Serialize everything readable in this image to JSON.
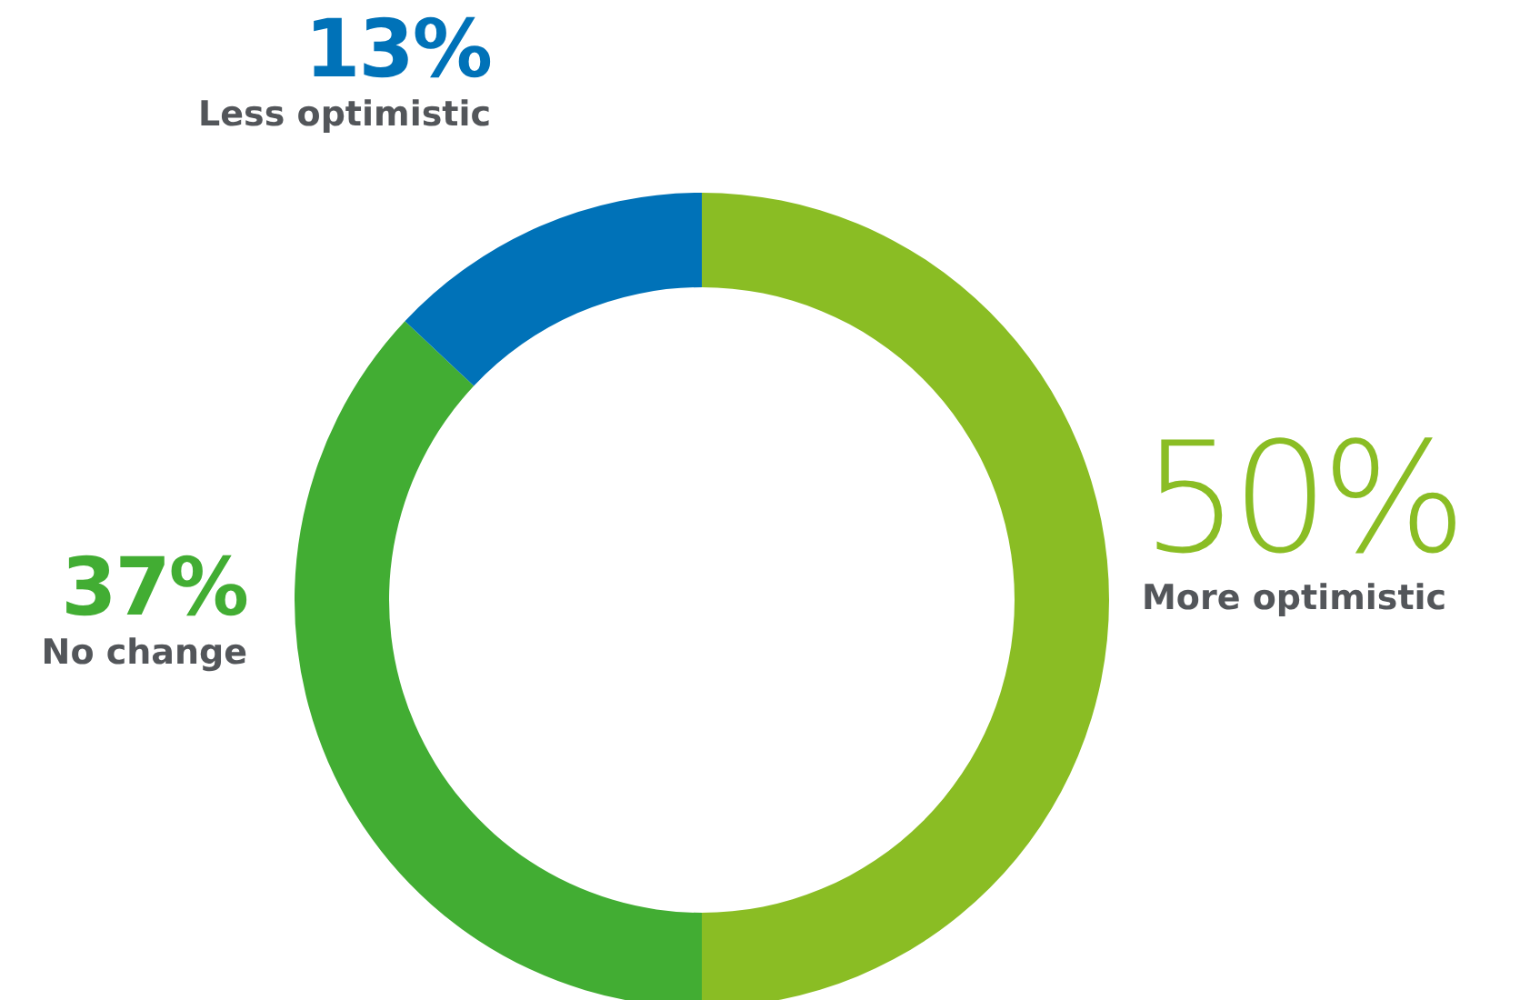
{
  "chart_data": {
    "type": "donut",
    "categories": [
      "More optimistic",
      "No change",
      "Less optimistic"
    ],
    "values": [
      50,
      37,
      13
    ],
    "value_labels": [
      "50%",
      "37%",
      "13%"
    ],
    "colors": [
      "#8abd24",
      "#42ad33",
      "#0072b8"
    ]
  }
}
